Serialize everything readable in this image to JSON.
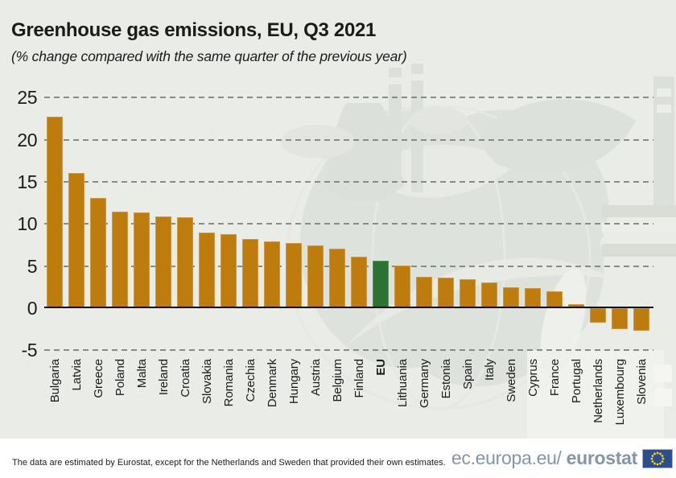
{
  "header": {
    "title": "Greenhouse gas emissions, EU, Q3 2021",
    "subtitle": "(% change compared with the same quarter of the previous year)"
  },
  "chart_data": {
    "type": "bar",
    "title": "Greenhouse gas emissions, EU, Q3 2021",
    "subtitle": "(% change compared with the same quarter of the previous year)",
    "ylabel": "% change compared with the same quarter of the previous year",
    "xlabel": "",
    "categories": [
      "Bulgaria",
      "Latvia",
      "Greece",
      "Poland",
      "Malta",
      "Ireland",
      "Croatia",
      "Slovakia",
      "Romania",
      "Czechia",
      "Denmark",
      "Hungary",
      "Austria",
      "Belgium",
      "Finland",
      "EU",
      "Lithuania",
      "Germany",
      "Estonia",
      "Spain",
      "Italy",
      "Sweden",
      "Cyprus",
      "France",
      "Portugal",
      "Netherlands",
      "Luxembourg",
      "Slovenia"
    ],
    "values": [
      22.7,
      16.1,
      13.1,
      11.5,
      11.4,
      10.9,
      10.8,
      9.0,
      8.8,
      8.2,
      7.9,
      7.7,
      7.5,
      7.1,
      6.1,
      5.6,
      5.1,
      3.7,
      3.6,
      3.4,
      3.1,
      2.5,
      2.4,
      2.0,
      0.5,
      -1.7,
      -2.5,
      -2.7
    ],
    "highlight_category": "EU",
    "yticks": [
      25,
      20,
      15,
      10,
      5,
      0,
      -5
    ],
    "ylim": [
      -5,
      25
    ],
    "grid": "horizontal-dashed",
    "legend": "none",
    "bar_color": "#BE7C0E",
    "highlight_color": "#2D7233",
    "gridline_color": "#8A8A8A",
    "zero_line_color": "#000000"
  },
  "footer": {
    "note": "The data are estimated by Eurostat, except for the Netherlands and Sweden that provided their own estimates.",
    "brand_prefix": "ec.europa.eu/",
    "brand_bold": "eurostat",
    "flag_icon": "eu-flag-icon",
    "brand_color": "#8595A9",
    "flag_blue": "#2E4D8F",
    "flag_star_color": "#F7D118"
  },
  "colors": {
    "background": "#EAECE7",
    "footer_background": "#FFFFFF",
    "text": "#1B1B1B",
    "watermark": "#DEE2DC"
  }
}
